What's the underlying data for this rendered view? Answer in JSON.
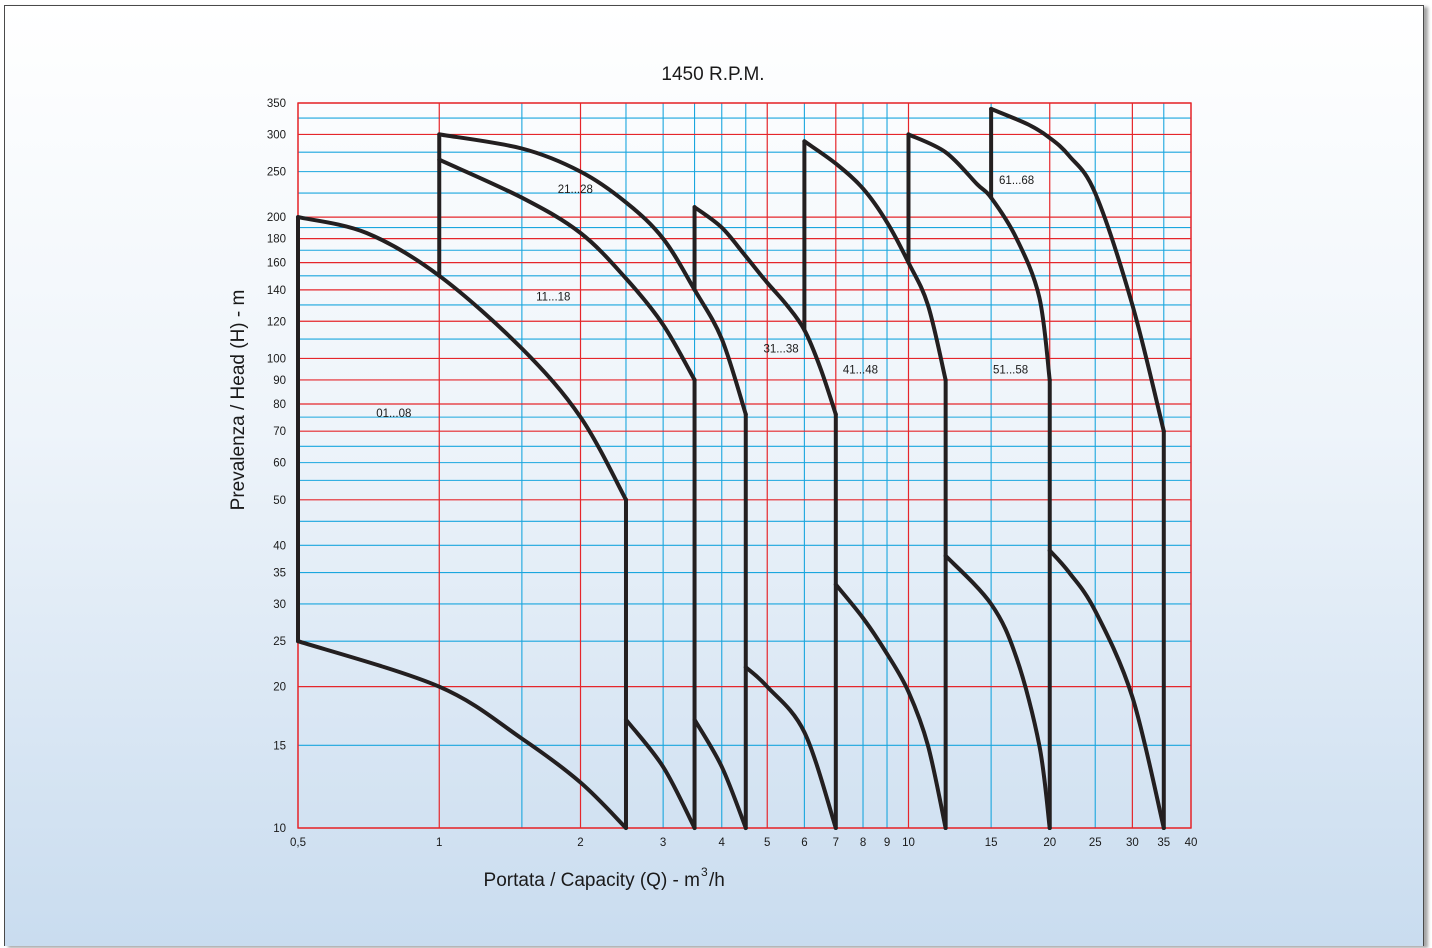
{
  "chart_data": {
    "type": "line",
    "title": "1450 R.P.M.",
    "xlabel": "Portata / Capacity (Q) - m",
    "xlabel_sup": "3",
    "xlabel_tail": "/h",
    "ylabel": "Prevalenza / Head (H) - m",
    "x_scale": "log",
    "y_scale": "log",
    "xlim": [
      0.5,
      40
    ],
    "ylim": [
      10,
      350
    ],
    "grid": true,
    "colors": {
      "major_grid": "#e5262b",
      "minor_grid": "#1aa6de",
      "curve": "#231f20"
    },
    "x_major_grid": [
      0.5,
      1,
      2,
      5,
      7,
      10,
      20,
      30,
      40
    ],
    "x_minor_grid": [
      1.5,
      2.5,
      3,
      3.5,
      4,
      4.5,
      6,
      8,
      9,
      15,
      25,
      35
    ],
    "y_major_grid": [
      10,
      20,
      50,
      70,
      80,
      90,
      100,
      120,
      140,
      160,
      180,
      200,
      300,
      350
    ],
    "y_minor_grid": [
      15,
      25,
      30,
      35,
      40,
      45,
      55,
      60,
      65,
      75,
      110,
      130,
      150,
      170,
      190,
      225,
      250,
      275,
      325
    ],
    "x_ticks": [
      {
        "v": 0.5,
        "label": "0,5"
      },
      {
        "v": 1,
        "label": "1"
      },
      {
        "v": 2,
        "label": "2"
      },
      {
        "v": 3,
        "label": "3"
      },
      {
        "v": 4,
        "label": "4"
      },
      {
        "v": 5,
        "label": "5"
      },
      {
        "v": 6,
        "label": "6"
      },
      {
        "v": 7,
        "label": "7"
      },
      {
        "v": 8,
        "label": "8"
      },
      {
        "v": 9,
        "label": "9"
      },
      {
        "v": 10,
        "label": "10"
      },
      {
        "v": 15,
        "label": "15"
      },
      {
        "v": 20,
        "label": "20"
      },
      {
        "v": 25,
        "label": "25"
      },
      {
        "v": 30,
        "label": "30"
      },
      {
        "v": 35,
        "label": "35"
      },
      {
        "v": 40,
        "label": "40"
      }
    ],
    "y_ticks": [
      {
        "v": 10,
        "label": "10"
      },
      {
        "v": 15,
        "label": "15"
      },
      {
        "v": 20,
        "label": "20"
      },
      {
        "v": 25,
        "label": "25"
      },
      {
        "v": 30,
        "label": "30"
      },
      {
        "v": 35,
        "label": "35"
      },
      {
        "v": 40,
        "label": "40"
      },
      {
        "v": 50,
        "label": "50"
      },
      {
        "v": 60,
        "label": "60"
      },
      {
        "v": 70,
        "label": "70"
      },
      {
        "v": 80,
        "label": "80"
      },
      {
        "v": 90,
        "label": "90"
      },
      {
        "v": 100,
        "label": "100"
      },
      {
        "v": 120,
        "label": "120"
      },
      {
        "v": 140,
        "label": "140"
      },
      {
        "v": 160,
        "label": "160"
      },
      {
        "v": 180,
        "label": "180"
      },
      {
        "v": 200,
        "label": "200"
      },
      {
        "v": 250,
        "label": "250"
      },
      {
        "v": 300,
        "label": "300"
      },
      {
        "v": 350,
        "label": "350"
      }
    ],
    "series": [
      {
        "label": "01...08",
        "label_at": [
          0.8,
          75
        ],
        "top": [
          [
            0.5,
            200
          ],
          [
            0.7,
            185
          ],
          [
            1.0,
            150
          ],
          [
            1.5,
            105
          ],
          [
            2.0,
            75
          ],
          [
            2.5,
            50
          ]
        ],
        "bottom": [
          [
            0.5,
            25
          ],
          [
            1.0,
            20
          ],
          [
            1.5,
            15.5
          ],
          [
            2.0,
            12.5
          ],
          [
            2.5,
            10
          ]
        ]
      },
      {
        "label": "11...18",
        "label_at": [
          1.75,
          133
        ],
        "top": [
          [
            1.0,
            265
          ],
          [
            1.5,
            220
          ],
          [
            2.0,
            185
          ],
          [
            2.5,
            148
          ],
          [
            3.0,
            118
          ],
          [
            3.5,
            90
          ]
        ],
        "bottom": [
          [
            2.5,
            17
          ],
          [
            3.0,
            13.5
          ],
          [
            3.5,
            10
          ]
        ]
      },
      {
        "label": "21...28",
        "label_at": [
          1.95,
          225
        ],
        "top": [
          [
            1.0,
            300
          ],
          [
            1.5,
            280
          ],
          [
            2.0,
            250
          ],
          [
            2.5,
            215
          ],
          [
            3.0,
            180
          ],
          [
            3.5,
            140
          ],
          [
            4.0,
            110
          ],
          [
            4.5,
            76
          ]
        ],
        "bottom": [
          [
            3.5,
            17
          ],
          [
            4.0,
            13.5
          ],
          [
            4.5,
            10
          ]
        ]
      },
      {
        "label": "31...38",
        "label_at": [
          5.35,
          103
        ],
        "top": [
          [
            3.5,
            210
          ],
          [
            4.0,
            190
          ],
          [
            4.5,
            165
          ],
          [
            5.0,
            145
          ],
          [
            5.5,
            130
          ],
          [
            6.0,
            115
          ],
          [
            6.5,
            95
          ],
          [
            7.0,
            76
          ]
        ],
        "bottom": [
          [
            4.5,
            22
          ],
          [
            5.0,
            20
          ],
          [
            6.0,
            16
          ],
          [
            7.0,
            10
          ]
        ]
      },
      {
        "label": "41...48",
        "label_at": [
          7.9,
          93
        ],
        "top": [
          [
            6.0,
            290
          ],
          [
            7.0,
            260
          ],
          [
            8.0,
            230
          ],
          [
            9.0,
            195
          ],
          [
            10.0,
            160
          ],
          [
            11.0,
            130
          ],
          [
            12.0,
            90
          ]
        ],
        "bottom": [
          [
            7.0,
            33
          ],
          [
            8.0,
            28
          ],
          [
            9.0,
            23.5
          ],
          [
            10.0,
            19.5
          ],
          [
            11.0,
            15
          ],
          [
            12.0,
            10
          ]
        ]
      },
      {
        "label": "51...58",
        "label_at": [
          16.5,
          93
        ],
        "top": [
          [
            10.0,
            300
          ],
          [
            12.0,
            275
          ],
          [
            14.0,
            235
          ],
          [
            15.0,
            220
          ],
          [
            17.0,
            180
          ],
          [
            19.0,
            135
          ],
          [
            20.0,
            90
          ]
        ],
        "bottom": [
          [
            12.0,
            38
          ],
          [
            15.0,
            30
          ],
          [
            17.0,
            23
          ],
          [
            19.0,
            15
          ],
          [
            20.0,
            10
          ]
        ]
      },
      {
        "label": "61...68",
        "label_at": [
          17.0,
          235
        ],
        "top": [
          [
            15.0,
            340
          ],
          [
            18.0,
            315
          ],
          [
            20.0,
            295
          ],
          [
            22.0,
            270
          ],
          [
            25.0,
            225
          ],
          [
            30.0,
            130
          ],
          [
            35.0,
            70
          ]
        ],
        "bottom": [
          [
            20.0,
            39
          ],
          [
            22.0,
            35
          ],
          [
            25.0,
            29
          ],
          [
            30.0,
            19
          ],
          [
            35.0,
            10
          ]
        ]
      }
    ],
    "steps": [
      [
        [
          0.5,
          25
        ],
        [
          0.5,
          200
        ]
      ],
      [
        [
          1.0,
          150
        ],
        [
          1.0,
          300
        ]
      ],
      [
        [
          2.5,
          10
        ],
        [
          2.5,
          50
        ]
      ],
      [
        [
          3.5,
          10
        ],
        [
          3.5,
          90
        ]
      ],
      [
        [
          3.5,
          140
        ],
        [
          3.5,
          210
        ]
      ],
      [
        [
          4.5,
          10
        ],
        [
          4.5,
          76
        ]
      ],
      [
        [
          6.0,
          115
        ],
        [
          6.0,
          290
        ]
      ],
      [
        [
          7.0,
          10
        ],
        [
          7.0,
          76
        ]
      ],
      [
        [
          10.0,
          160
        ],
        [
          10.0,
          300
        ]
      ],
      [
        [
          12.0,
          10
        ],
        [
          12.0,
          90
        ]
      ],
      [
        [
          15.0,
          220
        ],
        [
          15.0,
          340
        ]
      ],
      [
        [
          20.0,
          10
        ],
        [
          20.0,
          90
        ]
      ],
      [
        [
          35.0,
          10
        ],
        [
          35.0,
          70
        ]
      ]
    ]
  }
}
